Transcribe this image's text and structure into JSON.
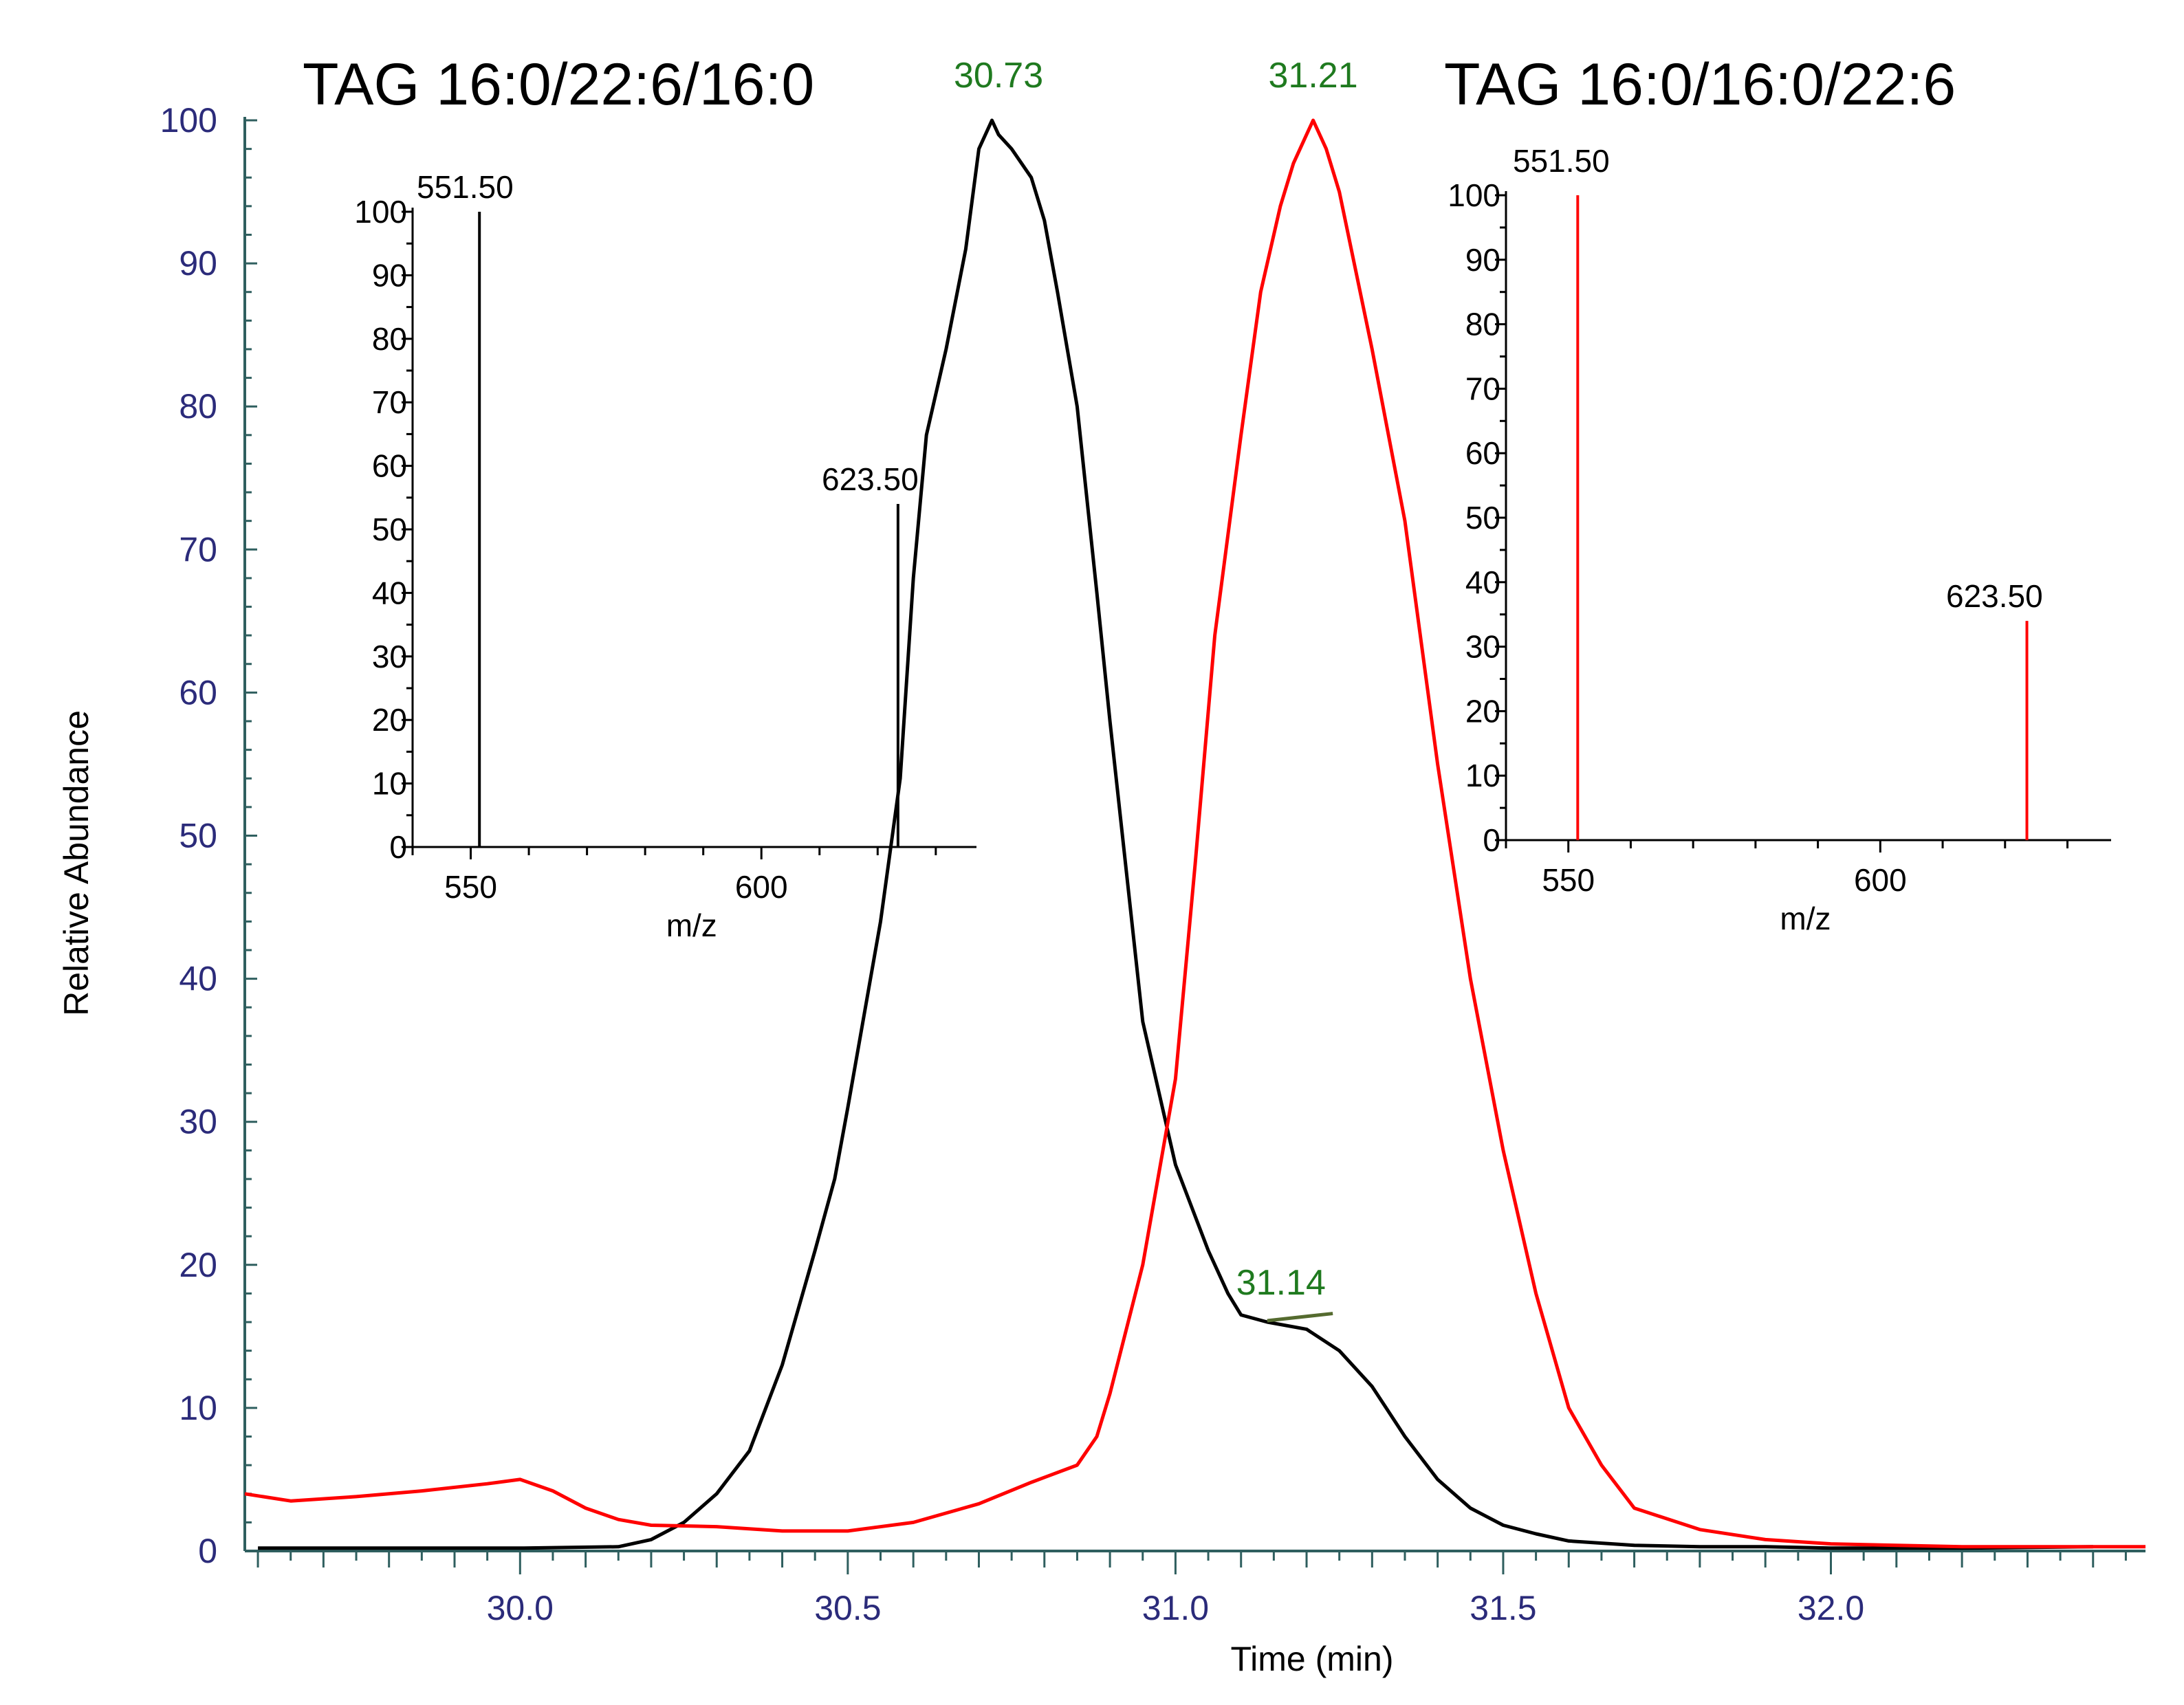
{
  "titles": {
    "left": "TAG 16:0/22:6/16:0",
    "right": "TAG 16:0/16:0/22:6"
  },
  "chart_data": [
    {
      "type": "line",
      "xlabel": "Time (min)",
      "ylabel": "Relative Abundance",
      "xlim": [
        29.58,
        32.48
      ],
      "ylim": [
        0,
        100
      ],
      "xticks": [
        "30.0",
        "30.5",
        "31.0",
        "31.5",
        "32.0"
      ],
      "yticks": [
        "0",
        "10",
        "20",
        "30",
        "40",
        "50",
        "60",
        "70",
        "80",
        "90",
        "100"
      ],
      "colors": {
        "axis_text": "#2b2b7a",
        "peak_label": "#1f7a1f",
        "black_series": "#000000",
        "red_series": "#ff0000"
      },
      "series": [
        {
          "color": "#000000",
          "x": [
            29.6,
            29.8,
            30.0,
            30.15,
            30.2,
            30.25,
            30.3,
            30.35,
            30.4,
            30.45,
            30.48,
            30.5,
            30.55,
            30.58,
            30.6,
            30.62,
            30.65,
            30.68,
            30.7,
            30.72,
            30.73,
            30.75,
            30.78,
            30.8,
            30.82,
            30.85,
            30.88,
            30.9,
            30.95,
            31.0,
            31.05,
            31.08,
            31.1,
            31.14,
            31.2,
            31.25,
            31.3,
            31.35,
            31.4,
            31.45,
            31.5,
            31.55,
            31.6,
            31.7,
            31.8,
            31.9,
            32.0,
            32.2,
            32.4
          ],
          "y": [
            0.2,
            0.2,
            0.2,
            0.3,
            0.8,
            2,
            4,
            7,
            13,
            21,
            26,
            31,
            44,
            54,
            68,
            78,
            84,
            91,
            98,
            100,
            99,
            98,
            96,
            93,
            88,
            80,
            67,
            58,
            37,
            27,
            21,
            18,
            16.5,
            16,
            15.5,
            14,
            11.5,
            8,
            5,
            3,
            1.8,
            1.2,
            0.7,
            0.4,
            0.3,
            0.3,
            0.2,
            0.2,
            0.3
          ]
        },
        {
          "color": "#ff0000",
          "x": [
            29.58,
            29.65,
            29.75,
            29.85,
            29.95,
            30.0,
            30.05,
            30.1,
            30.15,
            30.2,
            30.3,
            30.4,
            30.5,
            30.6,
            30.7,
            30.78,
            30.85,
            30.88,
            30.9,
            30.95,
            31.0,
            31.03,
            31.06,
            31.1,
            31.13,
            31.16,
            31.18,
            31.2,
            31.21,
            31.23,
            31.25,
            31.3,
            31.35,
            31.4,
            31.45,
            31.5,
            31.55,
            31.6,
            31.65,
            31.7,
            31.8,
            31.9,
            32.0,
            32.1,
            32.2,
            32.3,
            32.48
          ],
          "y": [
            4,
            3.5,
            3.8,
            4.2,
            4.7,
            5,
            4.2,
            3,
            2.2,
            1.8,
            1.7,
            1.4,
            1.4,
            2,
            3.3,
            4.8,
            6,
            8,
            11,
            20,
            33,
            48,
            64,
            78,
            88,
            94,
            97,
            99,
            100,
            98,
            95,
            84,
            72,
            55,
            40,
            28,
            18,
            10,
            6,
            3,
            1.5,
            0.8,
            0.5,
            0.4,
            0.3,
            0.3,
            0.3
          ]
        }
      ],
      "annotations": [
        {
          "x": 30.73,
          "y": 100,
          "text": "30.73"
        },
        {
          "x": 31.21,
          "y": 100,
          "text": "31.21"
        },
        {
          "x": 31.14,
          "y": 16,
          "text": "31.14"
        }
      ]
    },
    {
      "type": "bar",
      "xlabel": "m/z",
      "xlim": [
        540,
        637
      ],
      "ylim": [
        0,
        100
      ],
      "xticks": [
        "550",
        "600"
      ],
      "yticks": [
        "0",
        "10",
        "20",
        "30",
        "40",
        "50",
        "60",
        "70",
        "80",
        "90",
        "100"
      ],
      "color": "#000000",
      "peaks": [
        {
          "x": 551.5,
          "y": 100,
          "label": "551.50"
        },
        {
          "x": 623.5,
          "y": 54,
          "label": "623.50"
        }
      ]
    },
    {
      "type": "bar",
      "xlabel": "m/z",
      "xlim": [
        540,
        637
      ],
      "ylim": [
        0,
        100
      ],
      "xticks": [
        "550",
        "600"
      ],
      "yticks": [
        "0",
        "10",
        "20",
        "30",
        "40",
        "50",
        "60",
        "70",
        "80",
        "90",
        "100"
      ],
      "color": "#ff0000",
      "peaks": [
        {
          "x": 551.5,
          "y": 100,
          "label": "551.50"
        },
        {
          "x": 623.5,
          "y": 34,
          "label": "623.50"
        }
      ]
    }
  ]
}
